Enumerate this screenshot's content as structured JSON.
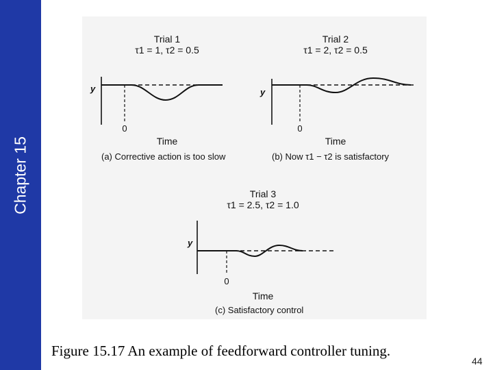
{
  "sidebar": {
    "label": "Chapter 15",
    "color": "#1f39a6"
  },
  "panels": [
    {
      "id": "a",
      "title": "Trial 1",
      "params": "τ1 = 1, τ2 = 0.5",
      "y_label": "y",
      "zero_label": "0",
      "x_label": "Time",
      "caption": "(a) Corrective action is too slow"
    },
    {
      "id": "b",
      "title": "Trial 2",
      "params": "τ1 = 2, τ2 = 0.5",
      "y_label": "y",
      "zero_label": "0",
      "x_label": "Time",
      "caption": "(b) Now τ1 − τ2 is satisfactory"
    },
    {
      "id": "c",
      "title": "Trial 3",
      "params": "τ1 = 2.5, τ2 = 1.0",
      "y_label": "y",
      "zero_label": "0",
      "x_label": "Time",
      "caption": "(c) Satisfactory control"
    }
  ],
  "figure_caption": "Figure 15.17 An example of feedforward controller tuning.",
  "page_number": "44"
}
